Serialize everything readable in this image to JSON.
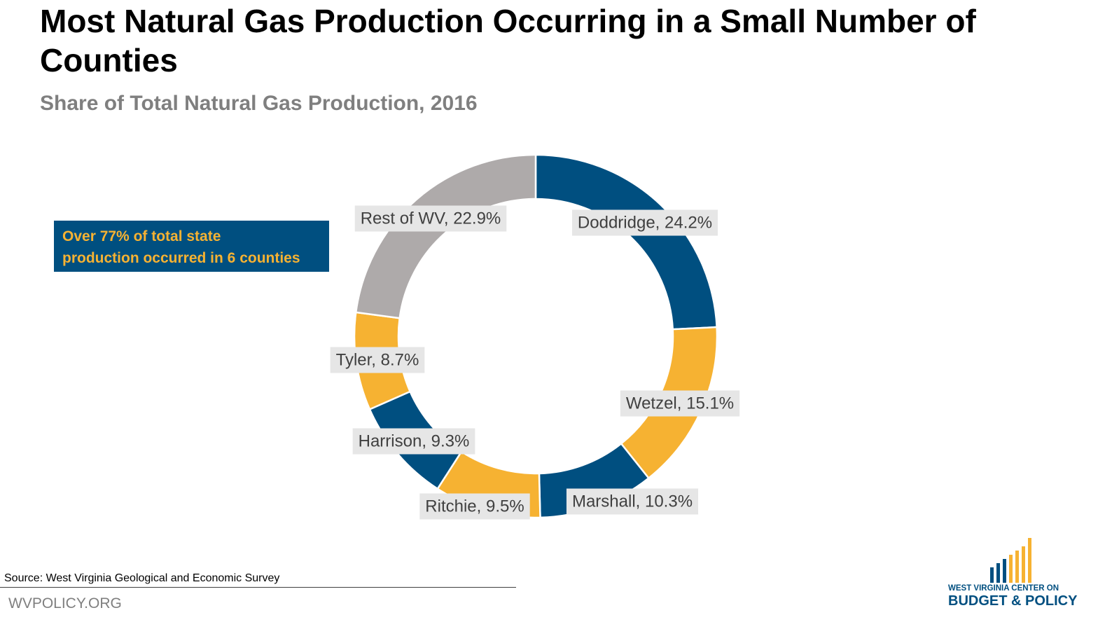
{
  "title": "Most Natural Gas Production Occurring in a Small Number of Counties",
  "subtitle": "Share of Total Natural Gas Production, 2016",
  "callout": {
    "line1": "Over 77% of total state",
    "line2": "production occurred in 6 counties"
  },
  "source": "Source: West Virginia Geological and Economic Survey",
  "footer_url": "WVPOLICY.ORG",
  "logo": {
    "line1": "WEST VIRGINIA CENTER ON",
    "line2": "BUDGET & POLICY"
  },
  "colors": {
    "navy": "#004f80",
    "gold": "#f6b232",
    "gray": "#aeaaaa",
    "label_bg": "#e6e6e6"
  },
  "chart_data": {
    "type": "pie",
    "title": "Share of Total Natural Gas Production, 2016",
    "donut": true,
    "categories": [
      "Doddridge",
      "Wetzel",
      "Marshall",
      "Ritchie",
      "Harrison",
      "Tyler",
      "Rest of WV"
    ],
    "values": [
      24.2,
      15.1,
      10.3,
      9.5,
      9.3,
      8.7,
      22.9
    ],
    "labels": [
      "Doddridge, 24.2%",
      "Wetzel, 15.1%",
      "Marshall, 10.3%",
      "Ritchie, 9.5%",
      "Harrison, 9.3%",
      "Tyler, 8.7%",
      "Rest of WV, 22.9%"
    ],
    "colors": [
      "#004f80",
      "#f6b232",
      "#004f80",
      "#f6b232",
      "#004f80",
      "#f6b232",
      "#aeaaaa"
    ],
    "start_angle_deg": 0,
    "direction": "clockwise",
    "legend": "none"
  }
}
